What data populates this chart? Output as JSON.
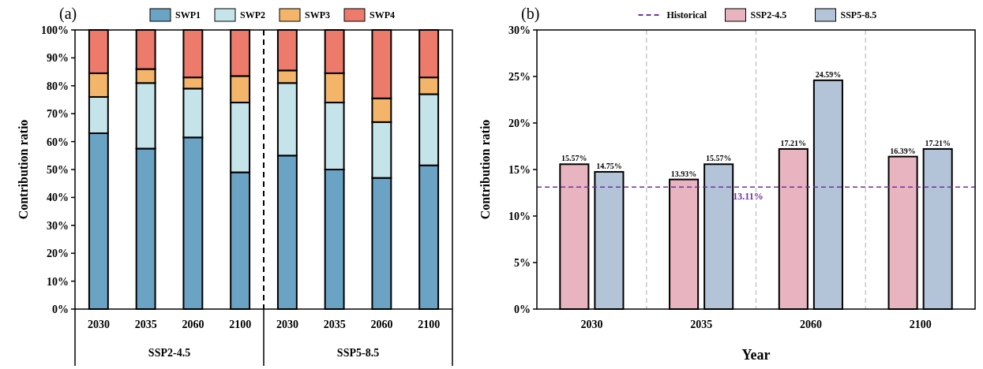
{
  "chart_data": [
    {
      "type": "bar",
      "title": "(a)",
      "ylabel": "Contribution ratio",
      "stacked": true,
      "legend": "top",
      "categories": [
        "2030",
        "2035",
        "2060",
        "2100",
        "2030",
        "2035",
        "2060",
        "2100"
      ],
      "annotations": [
        "SSP2-4.5",
        "SSP5-8.5"
      ],
      "series": [
        {
          "name": "SWP1",
          "color": "#6aa3c3",
          "values": [
            63,
            57.5,
            61.5,
            49,
            55,
            50,
            47,
            51.5
          ]
        },
        {
          "name": "SWP2",
          "color": "#c5e4ea",
          "values": [
            13,
            23.5,
            17.5,
            25,
            26,
            24,
            20,
            25.5
          ]
        },
        {
          "name": "SWP3",
          "color": "#f3b56a",
          "values": [
            8.5,
            5,
            4,
            9.5,
            4.5,
            10.5,
            8.5,
            6
          ]
        },
        {
          "name": "SWP4",
          "color": "#ec7b6c",
          "values": [
            15.5,
            14,
            17,
            16.5,
            14.5,
            15.5,
            24.5,
            17
          ]
        }
      ],
      "ylim": [
        0,
        100
      ],
      "yticks": [
        {
          "value": 0,
          "label": "0%"
        },
        {
          "value": 10,
          "label": "10%"
        },
        {
          "value": 20,
          "label": "20%"
        },
        {
          "value": 30,
          "label": "30%"
        },
        {
          "value": 40,
          "label": "40%"
        },
        {
          "value": 50,
          "label": "50%"
        },
        {
          "value": 60,
          "label": "60%"
        },
        {
          "value": 70,
          "label": "70%"
        },
        {
          "value": 80,
          "label": "80%"
        },
        {
          "value": 90,
          "label": "90%"
        },
        {
          "value": 100,
          "label": "100%"
        }
      ]
    },
    {
      "type": "bar",
      "title": "(b)",
      "xlabel": "Year",
      "ylabel": "Contribution ratio",
      "legend": "top",
      "categories": [
        "2030",
        "2035",
        "2060",
        "2100"
      ],
      "series": [
        {
          "name": "SSP2-4.5",
          "color": "#e8b4c0",
          "values": [
            15.57,
            13.93,
            17.21,
            16.39
          ],
          "value_labels": [
            "15.57%",
            "13.93%",
            "17.21%",
            "16.39%"
          ]
        },
        {
          "name": "SSP5-8.5",
          "color": "#b4c4d8",
          "values": [
            14.75,
            15.57,
            24.59,
            17.21
          ],
          "value_labels": [
            "14.75%",
            "15.57%",
            "24.59%",
            "17.21%"
          ]
        }
      ],
      "ref_lines": [
        {
          "axis": "y",
          "value": 13.11,
          "label": "Historical",
          "color": "#7030a0",
          "line_style": "dashed"
        }
      ],
      "annotations": [
        {
          "text": "13.11%",
          "y": 13.11
        }
      ],
      "ylim": [
        0,
        30
      ],
      "yticks": [
        {
          "value": 0,
          "label": "0%"
        },
        {
          "value": 5,
          "label": "5%"
        },
        {
          "value": 10,
          "label": "10%"
        },
        {
          "value": 15,
          "label": "15%"
        },
        {
          "value": 20,
          "label": "20%"
        },
        {
          "value": 25,
          "label": "25%"
        },
        {
          "value": 30,
          "label": "30%"
        }
      ]
    }
  ]
}
